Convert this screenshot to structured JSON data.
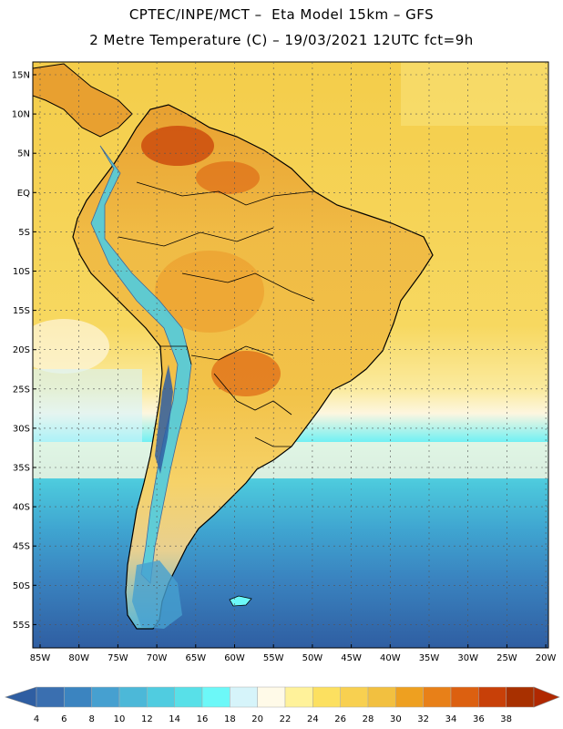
{
  "title": {
    "line1": "CPTEC/INPE/MCT –  Eta Model 15km – GFS",
    "line2": "2 Metre Temperature (C) – 19/03/2021 12UTC fct=9h"
  },
  "latitude_labels": [
    "15N",
    "10N",
    "5N",
    "EQ",
    "5S",
    "10S",
    "15S",
    "20S",
    "25S",
    "30S",
    "35S",
    "40S",
    "45S",
    "50S",
    "55S"
  ],
  "longitude_labels": [
    "85W",
    "80W",
    "75W",
    "70W",
    "65W",
    "60W",
    "55W",
    "50W",
    "45W",
    "40W",
    "35W",
    "30W",
    "25W",
    "20W"
  ],
  "colorbar": {
    "labels": [
      "4",
      "6",
      "8",
      "10",
      "12",
      "14",
      "16",
      "18",
      "20",
      "22",
      "24",
      "26",
      "28",
      "30",
      "32",
      "34",
      "36",
      "38"
    ],
    "colors": [
      "#3a6fb0",
      "#3b84c0",
      "#46a0d0",
      "#4cb8d8",
      "#50cce0",
      "#58e0e8",
      "#6cf8f8",
      "#d6f4fa",
      "#fffae8",
      "#fff29a",
      "#fce060",
      "#f8d050",
      "#f2c040",
      "#eea020",
      "#e88018",
      "#dc6010",
      "#c84008",
      "#a83000"
    ],
    "low_arrow_color": "#2f5ea2",
    "high_arrow_color": "#b02800"
  }
}
